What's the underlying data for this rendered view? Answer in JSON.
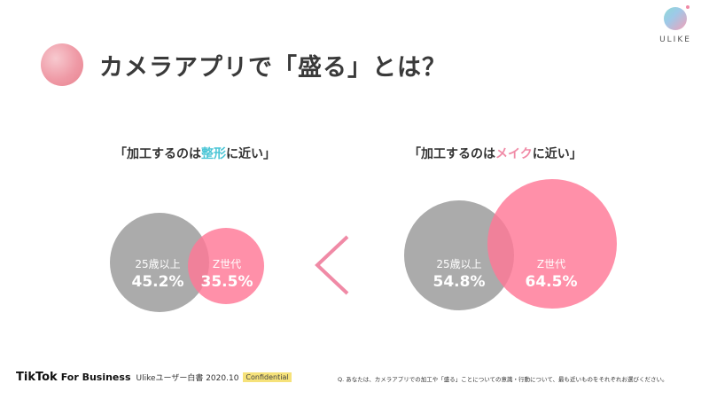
{
  "header": {
    "title": "カメラアプリで「盛る」とは？",
    "logo_text": "ULIKE"
  },
  "left_diagram": {
    "caption_prefix": "「加工するのは",
    "caption_highlight": "整形",
    "caption_suffix": "に近い」",
    "highlight_color": "#4cc6d6",
    "older": {
      "label": "25歳以上",
      "value": "45.2%"
    },
    "genz": {
      "label": "Z世代",
      "value": "35.5%"
    }
  },
  "right_diagram": {
    "caption_prefix": "「加工するのは",
    "caption_highlight": "メイク",
    "caption_suffix": "に近い」",
    "highlight_color": "#f08aa6",
    "older": {
      "label": "25歳以上",
      "value": "54.8%"
    },
    "genz": {
      "label": "Z世代",
      "value": "64.5%"
    }
  },
  "comparison_symbol": "less-than-chevron",
  "footer": {
    "brand": "TikTok",
    "brand_suffix": "For Business",
    "report": "Ulikeユーザー白書 2020.10",
    "badge": "Confidential",
    "question": "Q. あなたは、カメラアプリでの加工や「盛る」ことについての意識・行動について、最も近いものをそれぞれお選びください。"
  },
  "colors": {
    "grey_circle": "#999999",
    "pink_circle": "#ff7896",
    "chevron": "#f08aa6"
  }
}
